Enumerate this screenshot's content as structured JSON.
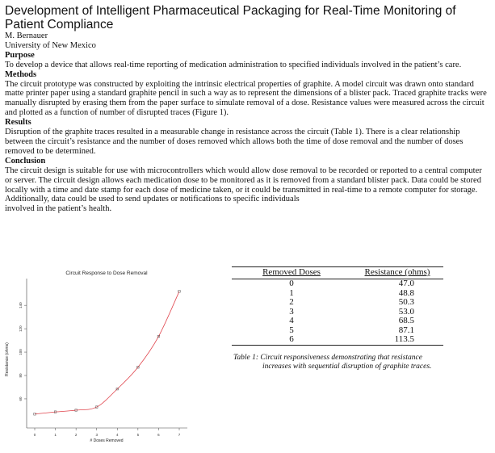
{
  "title": "Development of Intelligent Pharmaceutical Packaging for Real-Time Monitoring of Patient Compliance",
  "author": "M. Bernauer",
  "affiliation": "University of New Mexico",
  "sections": {
    "purpose": {
      "heading": "Purpose",
      "text": "To develop a device that allows real-time reporting of medication administration to specified individuals involved in the patient’s care."
    },
    "methods": {
      "heading": "Methods",
      "text": "The circuit prototype was constructed by exploiting the intrinsic electrical properties of graphite.  A model circuit was drawn onto standard matte printer paper using a standard graphite pencil in such a way as to represent the dimensions of a blister pack. Traced graphite tracks were manually disrupted by erasing them from the paper surface to simulate removal of a dose. Resistance values were measured across the circuit and plotted as a function of number of disrupted traces (Figure 1)."
    },
    "results": {
      "heading": "Results",
      "text": "Disruption of the graphite traces resulted in a measurable change in resistance across the circuit (Table 1). There is a clear relationship between the circuit’s resistance and the number of doses removed which allows both the time of dose removal and the number of doses removed to be determined."
    },
    "conclusion": {
      "heading": "Conclusion",
      "text": "The circuit design is suitable for use with microcontrollers which would allow dose removal to be recorded or reported to a central computer or server. The circuit design allows each medication dose to be monitored as it is removed from a standard blister pack. Data could be stored locally with a time and date stamp for each dose of medicine taken, or it could be transmitted in real-time to a remote computer for storage. Additionally, data could be used to send updates or notifications to specific individuals",
      "text_tail": "involved in the patient’s health."
    }
  },
  "chart_data": {
    "type": "scatter",
    "title": "Circuit Response to Dose Removal",
    "xlabel": "# Doses Removed",
    "ylabel": "Resistance (ohms)",
    "x": [
      0,
      1,
      2,
      3,
      4,
      5,
      6,
      7
    ],
    "y": [
      47.0,
      48.8,
      50.3,
      53.0,
      68.5,
      87.1,
      113.5,
      152
    ],
    "xticks": [
      "0",
      "1",
      "2",
      "3",
      "4",
      "5",
      "6",
      "7"
    ],
    "yticks": [
      "60",
      "80",
      "100",
      "120",
      "140"
    ],
    "ytick_values": [
      60,
      80,
      100,
      120,
      140
    ],
    "xlim": [
      0,
      7
    ],
    "ylim": [
      42,
      156
    ],
    "fit": "exponential",
    "point_color": "#555555",
    "fit_color": "#e0444c"
  },
  "table": {
    "headers": [
      "Removed Doses",
      "Resistance (ohms)"
    ],
    "rows": [
      [
        "0",
        "47.0"
      ],
      [
        "1",
        "48.8"
      ],
      [
        "2",
        "50.3"
      ],
      [
        "3",
        "53.0"
      ],
      [
        "4",
        "68.5"
      ],
      [
        "5",
        "87.1"
      ],
      [
        "6",
        "113.5"
      ]
    ],
    "caption_line1": "Table 1: Circuit responsiveness demonstrating that resistance",
    "caption_line2": "increases with sequential disruption of graphite traces."
  }
}
